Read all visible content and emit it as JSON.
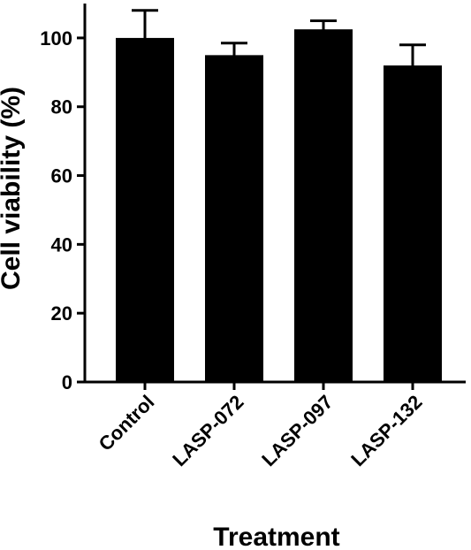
{
  "chart_data": {
    "type": "bar",
    "categories": [
      "Control",
      "LASP-072",
      "LASP-097",
      "LASP-132"
    ],
    "values": [
      100,
      95,
      102.5,
      92
    ],
    "errors": [
      8,
      3.5,
      2.5,
      6
    ],
    "title": "",
    "xlabel": "Treatment",
    "ylabel": "Cell viability (%)",
    "ylim": [
      0,
      110
    ],
    "yticks": [
      0,
      20,
      40,
      60,
      80,
      100
    ],
    "grid": false,
    "bar_color": "#000000"
  }
}
